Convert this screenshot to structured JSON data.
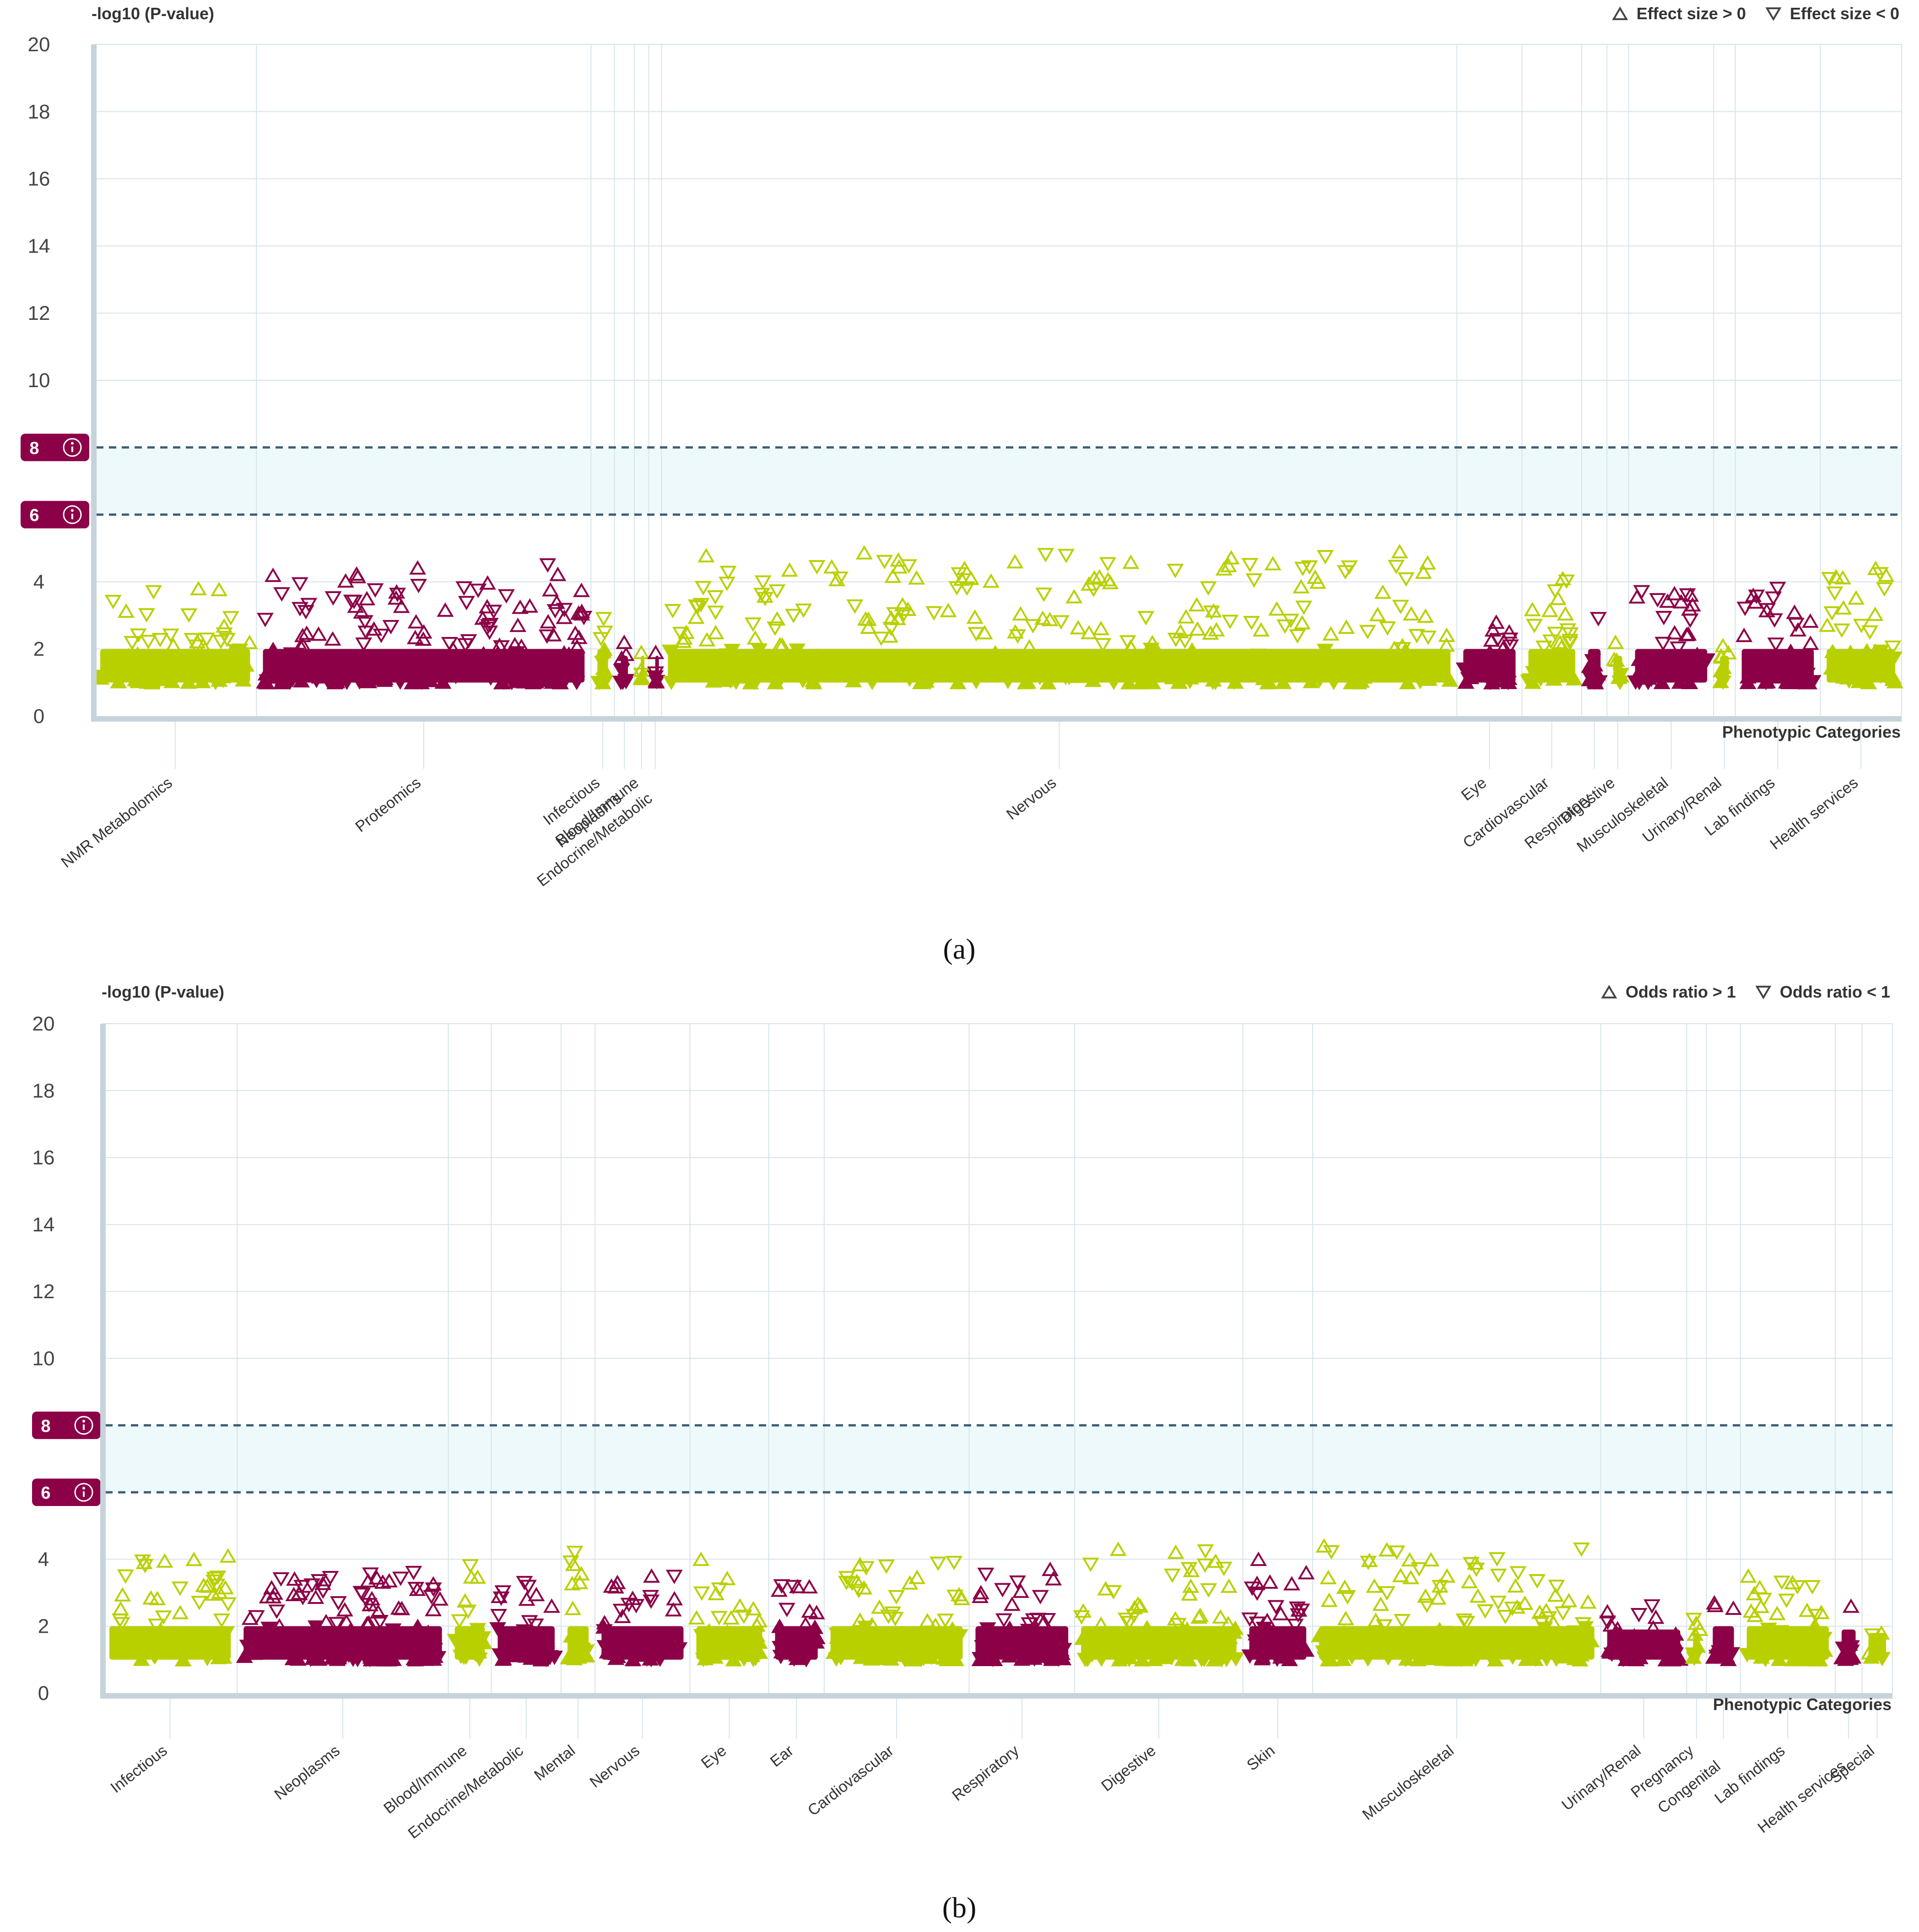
{
  "colors": {
    "green": "#b9d000",
    "maroon": "#8c0047",
    "band": "#eef9fc",
    "grid": "#d6e3ea",
    "threshold": "#3c5f75",
    "axis": "#c6d3da",
    "badge": "#8c0047"
  },
  "chart_data": [
    {
      "type": "scatter",
      "id": "a",
      "caption": "(a)",
      "ylabel": "-log10 (P-value)",
      "xlabel": "Phenotypic Categories",
      "ylim": [
        0,
        20
      ],
      "yticks": [
        0,
        2,
        4,
        6,
        8,
        10,
        12,
        14,
        16,
        18,
        20
      ],
      "thresholds": [
        {
          "value": 8,
          "label": "8",
          "icon": "info-icon"
        },
        {
          "value": 6,
          "label": "6",
          "icon": "info-icon"
        }
      ],
      "legend": [
        {
          "symbol": "triangle-up",
          "label": "Effect size > 0"
        },
        {
          "symbol": "triangle-down",
          "label": "Effect size < 0"
        }
      ],
      "categories": [
        {
          "name": "NMR Metabolomics",
          "span": [
            0,
            9
          ],
          "color": "green",
          "max": 3.8,
          "count": 70
        },
        {
          "name": "Proteomics",
          "span": [
            9,
            27.5
          ],
          "color": "maroon",
          "max": 4.5,
          "count": 180
        },
        {
          "name": "Infectious",
          "span": [
            27.5,
            28.8
          ],
          "color": "green",
          "max": 2.9,
          "count": 10
        },
        {
          "name": "Neoplasms",
          "span": [
            28.8,
            29.9
          ],
          "color": "maroon",
          "max": 2.2,
          "count": 8
        },
        {
          "name": "Blood/Immune",
          "span": [
            29.9,
            30.7
          ],
          "color": "green",
          "max": 1.9,
          "count": 6
        },
        {
          "name": "Endocrine/Metabolic",
          "span": [
            30.7,
            31.4
          ],
          "color": "maroon",
          "max": 1.9,
          "count": 6
        },
        {
          "name": "Nervous",
          "span": [
            31.4,
            75.4
          ],
          "color": "green",
          "max": 4.9,
          "count": 320
        },
        {
          "name": "Eye",
          "span": [
            75.4,
            79
          ],
          "color": "maroon",
          "max": 2.8,
          "count": 30
        },
        {
          "name": "Cardiovascular",
          "span": [
            79,
            82.3
          ],
          "color": "green",
          "max": 4.1,
          "count": 30
        },
        {
          "name": "Respiratory",
          "span": [
            82.3,
            83.7
          ],
          "color": "maroon",
          "max": 2.9,
          "count": 12
        },
        {
          "name": "Digestive",
          "span": [
            83.7,
            84.9
          ],
          "color": "green",
          "max": 2.2,
          "count": 8
        },
        {
          "name": "Musculoskeletal",
          "span": [
            84.9,
            89.6
          ],
          "color": "maroon",
          "max": 3.7,
          "count": 40
        },
        {
          "name": "Urinary/Renal",
          "span": [
            89.6,
            90.8
          ],
          "color": "green",
          "max": 2.1,
          "count": 8
        },
        {
          "name": "Lab findings",
          "span": [
            90.8,
            95.5
          ],
          "color": "maroon",
          "max": 3.8,
          "count": 40
        },
        {
          "name": "Health services",
          "span": [
            95.5,
            100
          ],
          "color": "green",
          "max": 4.4,
          "count": 40
        }
      ]
    },
    {
      "type": "scatter",
      "id": "b",
      "caption": "(b)",
      "ylabel": "-log10 (P-value)",
      "xlabel": "Phenotypic Categories",
      "ylim": [
        0,
        20
      ],
      "yticks": [
        0,
        2,
        4,
        6,
        8,
        10,
        12,
        14,
        16,
        18,
        20
      ],
      "thresholds": [
        {
          "value": 8,
          "label": "8",
          "icon": "info-icon"
        },
        {
          "value": 6,
          "label": "6",
          "icon": "info-icon"
        }
      ],
      "legend": [
        {
          "symbol": "triangle-up",
          "label": "Odds ratio > 1"
        },
        {
          "symbol": "triangle-down",
          "label": "Odds ratio < 1"
        }
      ],
      "categories": [
        {
          "name": "Infectious",
          "span": [
            0,
            7.5
          ],
          "color": "green",
          "max": 4.1,
          "count": 50
        },
        {
          "name": "Neoplasms",
          "span": [
            7.5,
            19.3
          ],
          "color": "maroon",
          "max": 3.6,
          "count": 120
        },
        {
          "name": "Blood/Immune",
          "span": [
            19.3,
            21.7
          ],
          "color": "green",
          "max": 3.8,
          "count": 22
        },
        {
          "name": "Endocrine/Metabolic",
          "span": [
            21.7,
            25.6
          ],
          "color": "maroon",
          "max": 3.3,
          "count": 35
        },
        {
          "name": "Mental",
          "span": [
            25.6,
            27.5
          ],
          "color": "green",
          "max": 4.2,
          "count": 16
        },
        {
          "name": "Nervous",
          "span": [
            27.5,
            32.8
          ],
          "color": "maroon",
          "max": 3.5,
          "count": 45
        },
        {
          "name": "Eye",
          "span": [
            32.8,
            37.2
          ],
          "color": "green",
          "max": 4.0,
          "count": 35
        },
        {
          "name": "Ear",
          "span": [
            37.2,
            40.3
          ],
          "color": "maroon",
          "max": 3.2,
          "count": 30
        },
        {
          "name": "Cardiovascular",
          "span": [
            40.3,
            48.4
          ],
          "color": "green",
          "max": 3.9,
          "count": 70
        },
        {
          "name": "Respiratory",
          "span": [
            48.4,
            54.3
          ],
          "color": "maroon",
          "max": 3.7,
          "count": 60
        },
        {
          "name": "Digestive",
          "span": [
            54.3,
            63.7
          ],
          "color": "green",
          "max": 4.3,
          "count": 80
        },
        {
          "name": "Skin",
          "span": [
            63.7,
            67.6
          ],
          "color": "maroon",
          "max": 4.0,
          "count": 35
        },
        {
          "name": "Musculoskeletal",
          "span": [
            67.6,
            83.7
          ],
          "color": "green",
          "max": 4.4,
          "count": 140
        },
        {
          "name": "Urinary/Renal",
          "span": [
            83.7,
            88.5
          ],
          "color": "maroon",
          "max": 2.6,
          "count": 40
        },
        {
          "name": "Pregnancy",
          "span": [
            88.5,
            89.6
          ],
          "color": "green",
          "max": 2.2,
          "count": 8
        },
        {
          "name": "Congenital",
          "span": [
            89.6,
            91.5
          ],
          "color": "maroon",
          "max": 2.7,
          "count": 14
        },
        {
          "name": "Lab findings",
          "span": [
            91.5,
            96.8
          ],
          "color": "green",
          "max": 3.5,
          "count": 45
        },
        {
          "name": "Health services",
          "span": [
            96.8,
            98.3
          ],
          "color": "maroon",
          "max": 2.6,
          "count": 12
        },
        {
          "name": "Special",
          "span": [
            98.3,
            100
          ],
          "color": "green",
          "max": 1.8,
          "count": 10
        }
      ]
    }
  ]
}
